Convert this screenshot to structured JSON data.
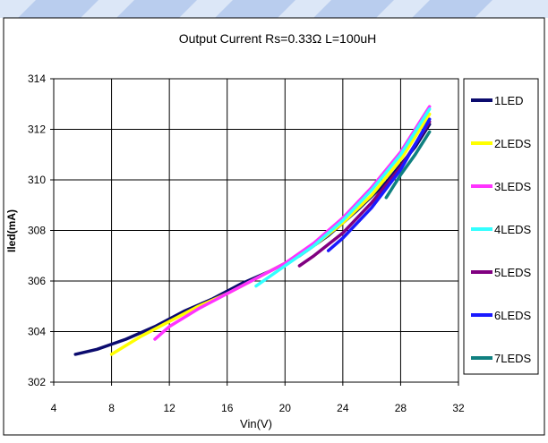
{
  "chart_data": {
    "type": "line",
    "title": "Output Current  Rs=0.33Ω L=100uH",
    "xlabel": "Vin(V)",
    "ylabel": "Iled(mA)",
    "xlim": [
      4,
      32
    ],
    "ylim": [
      302,
      314
    ],
    "xticks": [
      4,
      8,
      12,
      16,
      20,
      24,
      28,
      32
    ],
    "yticks": [
      302,
      304,
      306,
      308,
      310,
      312,
      314
    ],
    "grid": true,
    "legend_position": "right",
    "series": [
      {
        "name": "1LED",
        "color": "#0b0b6e",
        "x": [
          5.5,
          7,
          9,
          11,
          13,
          15,
          17,
          19,
          21,
          23,
          25,
          27,
          29,
          30
        ],
        "y": [
          303.1,
          303.3,
          303.7,
          304.2,
          304.8,
          305.3,
          305.9,
          306.4,
          307.0,
          307.8,
          308.8,
          309.9,
          311.3,
          312.2
        ]
      },
      {
        "name": "2LEDS",
        "color": "#ffff00",
        "x": [
          8,
          10,
          12,
          14,
          16,
          18,
          20,
          22,
          24,
          26,
          28,
          30
        ],
        "y": [
          303.1,
          303.8,
          304.4,
          305.0,
          305.5,
          306.1,
          306.7,
          307.4,
          308.3,
          309.4,
          310.8,
          312.6
        ]
      },
      {
        "name": "3LEDS",
        "color": "#ff33ff",
        "x": [
          11,
          12,
          14,
          16,
          18,
          20,
          22,
          24,
          26,
          28,
          30
        ],
        "y": [
          303.7,
          304.2,
          304.9,
          305.5,
          306.1,
          306.7,
          307.5,
          308.5,
          309.7,
          311.1,
          312.9
        ]
      },
      {
        "name": "4LEDS",
        "color": "#33ffff",
        "x": [
          18,
          20,
          22,
          24,
          26,
          28,
          30
        ],
        "y": [
          305.8,
          306.6,
          307.4,
          308.4,
          309.6,
          311.0,
          312.8
        ]
      },
      {
        "name": "5LEDS",
        "color": "#800080",
        "x": [
          21,
          22,
          24,
          26,
          28,
          30
        ],
        "y": [
          306.6,
          307.0,
          307.9,
          309.1,
          310.5,
          312.3
        ]
      },
      {
        "name": "6LEDS",
        "color": "#1a1aff",
        "x": [
          23,
          24,
          26,
          28,
          30
        ],
        "y": [
          307.2,
          307.7,
          308.9,
          310.4,
          312.4
        ]
      },
      {
        "name": "7LEDS",
        "color": "#0f8080",
        "x": [
          27,
          28,
          29,
          30
        ],
        "y": [
          309.3,
          310.2,
          311.0,
          311.9
        ]
      }
    ]
  }
}
